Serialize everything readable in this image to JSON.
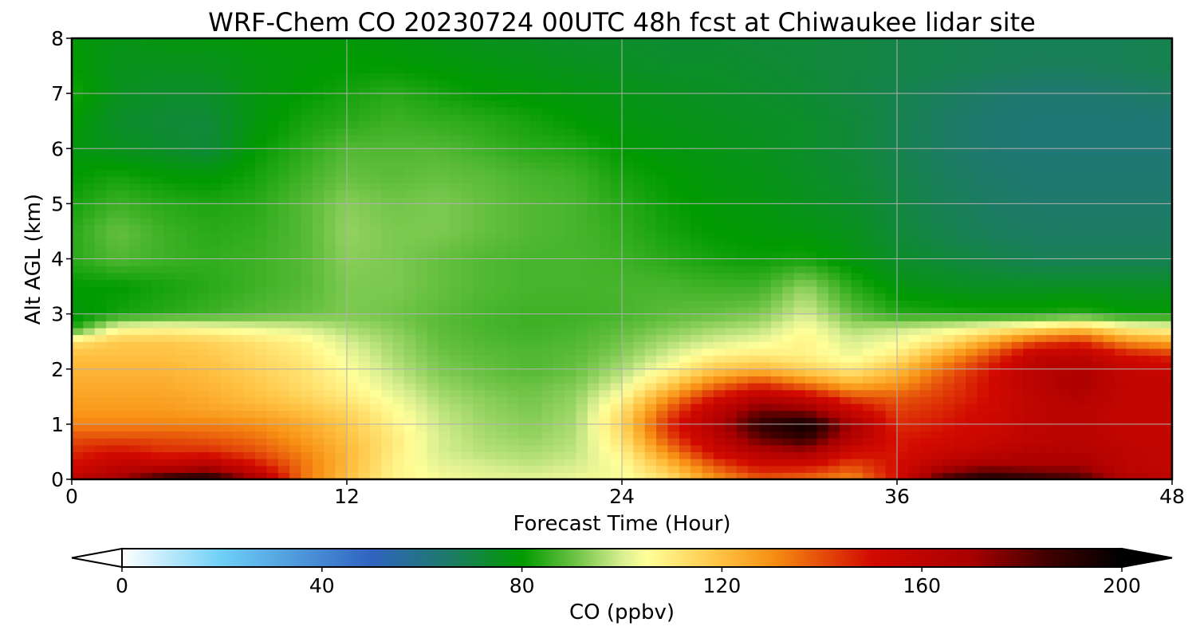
{
  "chart_data": {
    "type": "heatmap",
    "title": "WRF-Chem CO  20230724 00UTC 48h fcst at Chiwaukee lidar site",
    "xlabel": "Forecast Time (Hour)",
    "ylabel": "Alt AGL (km)",
    "xlim": [
      0,
      48
    ],
    "ylim": [
      0,
      8
    ],
    "x_ticks": [
      "0",
      "12",
      "24",
      "36",
      "48"
    ],
    "x_tick_values": [
      0,
      12,
      24,
      36,
      48
    ],
    "y_ticks": [
      "0",
      "1",
      "2",
      "3",
      "4",
      "5",
      "6",
      "7",
      "8"
    ],
    "y_tick_values": [
      0,
      1,
      2,
      3,
      4,
      5,
      6,
      7,
      8
    ],
    "grid": true,
    "colorbar": {
      "label": "CO  (ppbv)",
      "range": [
        0,
        200
      ],
      "extend": "both",
      "ticks": [
        "0",
        "40",
        "80",
        "120",
        "160",
        "200"
      ],
      "tick_values": [
        0,
        40,
        80,
        120,
        160,
        200
      ],
      "color_stops": [
        [
          0,
          "#ffffff"
        ],
        [
          20,
          "#6ecff6"
        ],
        [
          50,
          "#2f63c0"
        ],
        [
          65,
          "#1e7a6a"
        ],
        [
          80,
          "#009a00"
        ],
        [
          90,
          "#66c040"
        ],
        [
          100,
          "#d8ee90"
        ],
        [
          105,
          "#ffff99"
        ],
        [
          120,
          "#ffc040"
        ],
        [
          130,
          "#f79014"
        ],
        [
          150,
          "#d20a00"
        ],
        [
          170,
          "#a80000"
        ],
        [
          185,
          "#400000"
        ],
        [
          200,
          "#000000"
        ]
      ]
    },
    "x": [
      0,
      2,
      4,
      6,
      8,
      10,
      12,
      14,
      16,
      18,
      20,
      22,
      24,
      26,
      28,
      30,
      32,
      34,
      36,
      38,
      40,
      42,
      44,
      46,
      48
    ],
    "y": [
      0,
      0.25,
      0.5,
      0.75,
      1,
      1.25,
      1.5,
      1.75,
      2,
      2.25,
      2.5,
      2.75,
      3,
      3.5,
      4,
      4.5,
      5,
      5.5,
      6,
      6.5,
      7,
      7.5,
      8
    ],
    "z": [
      [
        160,
        170,
        190,
        195,
        170,
        135,
        120,
        108,
        104,
        102,
        102,
        103,
        104,
        112,
        128,
        138,
        135,
        130,
        150,
        185,
        195,
        190,
        185,
        165,
        160
      ],
      [
        150,
        160,
        160,
        165,
        150,
        135,
        122,
        108,
        102,
        100,
        98,
        100,
        105,
        120,
        138,
        150,
        150,
        140,
        150,
        165,
        172,
        170,
        170,
        160,
        158
      ],
      [
        145,
        150,
        145,
        145,
        140,
        132,
        122,
        110,
        100,
        97,
        96,
        98,
        108,
        130,
        152,
        165,
        170,
        152,
        148,
        155,
        160,
        165,
        165,
        160,
        158
      ],
      [
        140,
        140,
        140,
        138,
        135,
        128,
        120,
        110,
        100,
        96,
        94,
        97,
        112,
        140,
        160,
        180,
        188,
        165,
        148,
        150,
        155,
        160,
        162,
        158,
        158
      ],
      [
        132,
        132,
        132,
        132,
        130,
        125,
        118,
        108,
        99,
        95,
        93,
        96,
        115,
        145,
        165,
        188,
        198,
        170,
        145,
        148,
        153,
        160,
        162,
        157,
        157
      ],
      [
        128,
        128,
        128,
        126,
        124,
        120,
        115,
        106,
        98,
        94,
        92,
        95,
        112,
        138,
        160,
        178,
        175,
        155,
        142,
        146,
        152,
        160,
        162,
        157,
        157
      ],
      [
        126,
        126,
        126,
        124,
        120,
        116,
        110,
        103,
        96,
        93,
        91,
        94,
        106,
        128,
        148,
        162,
        155,
        140,
        138,
        143,
        150,
        160,
        165,
        158,
        158
      ],
      [
        124,
        124,
        124,
        122,
        118,
        113,
        107,
        100,
        94,
        91,
        90,
        92,
        100,
        115,
        132,
        142,
        132,
        122,
        128,
        140,
        150,
        162,
        168,
        158,
        158
      ],
      [
        122,
        122,
        122,
        120,
        116,
        112,
        105,
        98,
        92,
        90,
        88,
        90,
        96,
        106,
        118,
        122,
        116,
        110,
        120,
        135,
        148,
        162,
        166,
        157,
        155
      ],
      [
        120,
        120,
        120,
        118,
        114,
        110,
        103,
        96,
        91,
        89,
        88,
        89,
        93,
        100,
        108,
        110,
        108,
        103,
        110,
        125,
        140,
        158,
        160,
        150,
        145
      ],
      [
        112,
        118,
        118,
        116,
        112,
        108,
        100,
        95,
        90,
        88,
        87,
        88,
        91,
        96,
        100,
        103,
        108,
        100,
        104,
        112,
        125,
        140,
        145,
        130,
        125
      ],
      [
        82,
        104,
        106,
        104,
        102,
        100,
        96,
        93,
        89,
        87,
        86,
        87,
        89,
        92,
        95,
        97,
        105,
        96,
        98,
        101,
        106,
        112,
        118,
        108,
        105
      ],
      [
        78,
        82,
        84,
        86,
        88,
        90,
        92,
        91,
        89,
        87,
        86,
        86,
        87,
        89,
        90,
        92,
        100,
        90,
        84,
        83,
        82,
        82,
        84,
        80,
        80
      ],
      [
        80,
        80,
        82,
        84,
        86,
        88,
        92,
        92,
        90,
        88,
        87,
        87,
        87,
        87,
        86,
        86,
        94,
        84,
        78,
        76,
        75,
        75,
        75,
        75,
        75
      ],
      [
        84,
        88,
        86,
        85,
        86,
        88,
        93,
        92,
        90,
        88,
        87,
        87,
        86,
        84,
        82,
        81,
        82,
        78,
        74,
        72,
        70,
        68,
        68,
        68,
        68
      ],
      [
        84,
        90,
        86,
        84,
        85,
        88,
        94,
        92,
        92,
        90,
        88,
        87,
        85,
        82,
        80,
        79,
        78,
        76,
        72,
        69,
        67,
        66,
        66,
        66,
        66
      ],
      [
        82,
        86,
        84,
        83,
        84,
        88,
        93,
        91,
        92,
        90,
        88,
        87,
        84,
        81,
        79,
        78,
        76,
        74,
        71,
        68,
        66,
        65,
        65,
        65,
        65
      ],
      [
        80,
        82,
        80,
        79,
        82,
        86,
        90,
        89,
        90,
        89,
        87,
        86,
        82,
        80,
        78,
        77,
        75,
        73,
        70,
        67,
        65,
        64,
        64,
        64,
        64
      ],
      [
        78,
        76,
        74,
        72,
        80,
        84,
        88,
        88,
        88,
        86,
        84,
        83,
        80,
        78,
        77,
        76,
        74,
        72,
        69,
        66,
        64,
        63,
        63,
        63,
        63
      ],
      [
        80,
        74,
        72,
        72,
        78,
        82,
        84,
        86,
        85,
        84,
        82,
        80,
        78,
        77,
        76,
        75,
        74,
        72,
        69,
        66,
        64,
        63,
        63,
        63,
        63
      ],
      [
        82,
        76,
        74,
        74,
        78,
        80,
        82,
        84,
        82,
        80,
        79,
        78,
        77,
        76,
        75,
        74,
        73,
        71,
        69,
        67,
        65,
        64,
        64,
        65,
        66
      ],
      [
        80,
        76,
        76,
        76,
        78,
        79,
        80,
        80,
        79,
        78,
        77,
        76,
        75,
        74,
        74,
        73,
        72,
        71,
        70,
        69,
        68,
        67,
        67,
        68,
        69
      ],
      [
        79,
        77,
        78,
        78,
        79,
        79,
        79,
        78,
        77,
        76,
        75,
        74,
        74,
        73,
        73,
        72,
        72,
        71,
        70,
        69,
        68,
        68,
        68,
        68,
        69
      ]
    ]
  }
}
